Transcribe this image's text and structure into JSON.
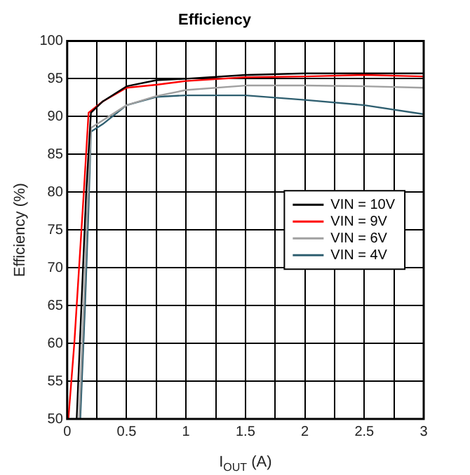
{
  "chart_data": {
    "type": "line",
    "title": "Efficiency",
    "xlabel": "I$_{OUT}$ (A)",
    "ylabel": "Efficiency (%)",
    "xlim": [
      0,
      3
    ],
    "xticks": [
      0,
      {
        "value": 0.25,
        "label": null
      },
      0.5,
      {
        "value": 0.75,
        "label": null
      },
      1,
      {
        "value": 1.25,
        "label": null
      },
      1.5,
      {
        "value": 1.75,
        "label": null
      },
      2,
      {
        "value": 2.25,
        "label": null
      },
      2.5,
      {
        "value": 2.75,
        "label": null
      },
      3
    ],
    "ylim": [
      50,
      100
    ],
    "yticks": [
      50,
      55,
      60,
      65,
      70,
      75,
      80,
      85,
      90,
      95,
      100
    ],
    "grid": true,
    "legend": "right",
    "marker": "none",
    "line_style": "solid",
    "series": [
      {
        "name": "VIN = 10V",
        "color": "#000000",
        "x": [
          0.08,
          0.12,
          0.16,
          0.2,
          0.3,
          0.5,
          0.75,
          1,
          1.5,
          2,
          2.5,
          3
        ],
        "values": [
          50,
          65,
          80,
          90.5,
          92,
          94,
          94.8,
          95,
          95.5,
          95.7,
          95.7,
          95.7
        ]
      },
      {
        "name": "VIN = 9V",
        "color": "#ff0000",
        "x": [
          0.01,
          0.06,
          0.1,
          0.14,
          0.18,
          0.3,
          0.5,
          0.75,
          1,
          1.5,
          2,
          2.5,
          3
        ],
        "values": [
          50,
          60,
          70,
          80,
          90.5,
          92,
          93.8,
          94.2,
          94.7,
          95.2,
          95.3,
          95.5,
          95.3
        ]
      },
      {
        "name": "VIN = 6V",
        "color": "#a0a0a0",
        "x": [
          0.1,
          0.14,
          0.17,
          0.2,
          0.3,
          0.5,
          0.75,
          1,
          1.5,
          2,
          2.5,
          3
        ],
        "values": [
          50,
          65,
          78,
          88.5,
          89.5,
          91.5,
          92.7,
          93.5,
          94.1,
          94.1,
          94,
          93.8
        ]
      },
      {
        "name": "VIN = 4V",
        "color": "#2f5f70",
        "x": [
          0.11,
          0.15,
          0.18,
          0.2,
          0.3,
          0.5,
          0.75,
          1,
          1.5,
          2,
          2.5,
          3
        ],
        "values": [
          50,
          65,
          78,
          88,
          89,
          91.5,
          92.6,
          92.8,
          92.8,
          92.2,
          91.5,
          90.3
        ]
      }
    ]
  }
}
